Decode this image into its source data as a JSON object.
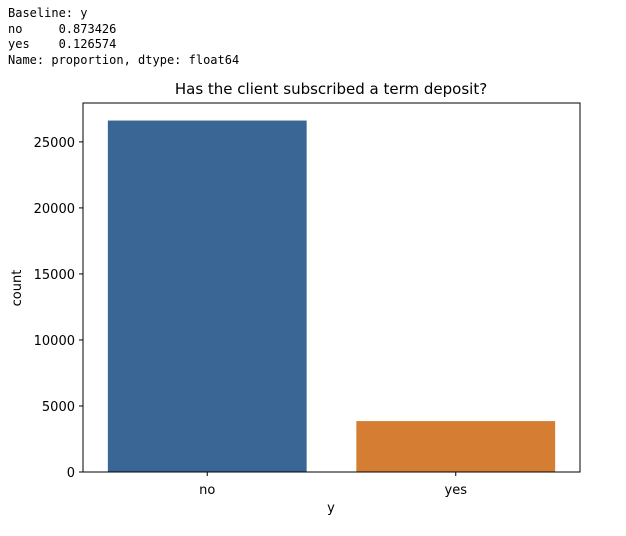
{
  "console_output": {
    "lines": [
      "Baseline: y",
      "no     0.873426",
      "yes    0.126574",
      "Name: proportion, dtype: float64"
    ]
  },
  "chart_data": {
    "type": "bar",
    "title": "Has the client subscribed a term deposit?",
    "xlabel": "y",
    "ylabel": "count",
    "categories": [
      "no",
      "yes"
    ],
    "values": [
      26616,
      3857
    ],
    "colors": [
      "#3a6696",
      "#d57d33"
    ],
    "ylim": [
      0,
      27945
    ],
    "yticks": [
      0,
      5000,
      10000,
      15000,
      20000,
      25000
    ],
    "grid": false,
    "legend": "none"
  }
}
